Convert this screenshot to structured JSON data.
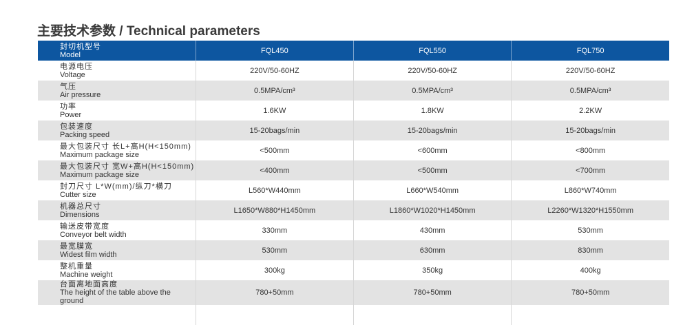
{
  "title": "主要技术参数 / Technical parameters",
  "header": {
    "zh": "封切机型号",
    "en": "Model",
    "models": [
      "FQL450",
      "FQL550",
      "FQL750"
    ]
  },
  "rows": [
    {
      "zh": "电源电压",
      "en": "Voltage",
      "values": [
        "220V/50-60HZ",
        "220V/50-60HZ",
        "220V/50-60HZ"
      ]
    },
    {
      "zh": "气压",
      "en": "Air pressure",
      "values": [
        "0.5MPA/cm³",
        "0.5MPA/cm³",
        "0.5MPA/cm³"
      ]
    },
    {
      "zh": "功率",
      "en": "Power",
      "values": [
        "1.6KW",
        "1.8KW",
        "2.2KW"
      ]
    },
    {
      "zh": "包装速度",
      "en": "Packing speed",
      "values": [
        "15-20bags/min",
        "15-20bags/min",
        "15-20bags/min"
      ]
    },
    {
      "zh": "最大包装尺寸 长L+高H(H<150mm)",
      "en": "Maximum package size",
      "values": [
        "<500mm",
        "<600mm",
        "<800mm"
      ]
    },
    {
      "zh": "最大包装尺寸 宽W+高H(H<150mm)",
      "en": "Maximum package size",
      "values": [
        "<400mm",
        "<500mm",
        "<700mm"
      ]
    },
    {
      "zh": "封刀尺寸 L*W(mm)/纵刀*横刀",
      "en": "Cutter size",
      "values": [
        "L560*W440mm",
        "L660*W540mm",
        "L860*W740mm"
      ]
    },
    {
      "zh": "机器总尺寸",
      "en": "Dimensions",
      "values": [
        "L1650*W880*H1450mm",
        "L1860*W1020*H1450mm",
        "L2260*W1320*H1550mm"
      ]
    },
    {
      "zh": "输送皮带宽度",
      "en": "Conveyor belt width",
      "values": [
        "330mm",
        "430mm",
        "530mm"
      ]
    },
    {
      "zh": "最宽膜宽",
      "en": "Widest film width",
      "values": [
        "530mm",
        "630mm",
        "830mm"
      ]
    },
    {
      "zh": "整机重量",
      "en": "Machine weight",
      "values": [
        "300kg",
        "350kg",
        "400kg"
      ]
    },
    {
      "zh": "台面离地面高度",
      "en": "The height of the table above the ground",
      "values": [
        "780+50mm",
        "780+50mm",
        "780+50mm"
      ]
    }
  ],
  "colors": {
    "header": "#0d56a0",
    "stripe": "#e3e3e3"
  }
}
